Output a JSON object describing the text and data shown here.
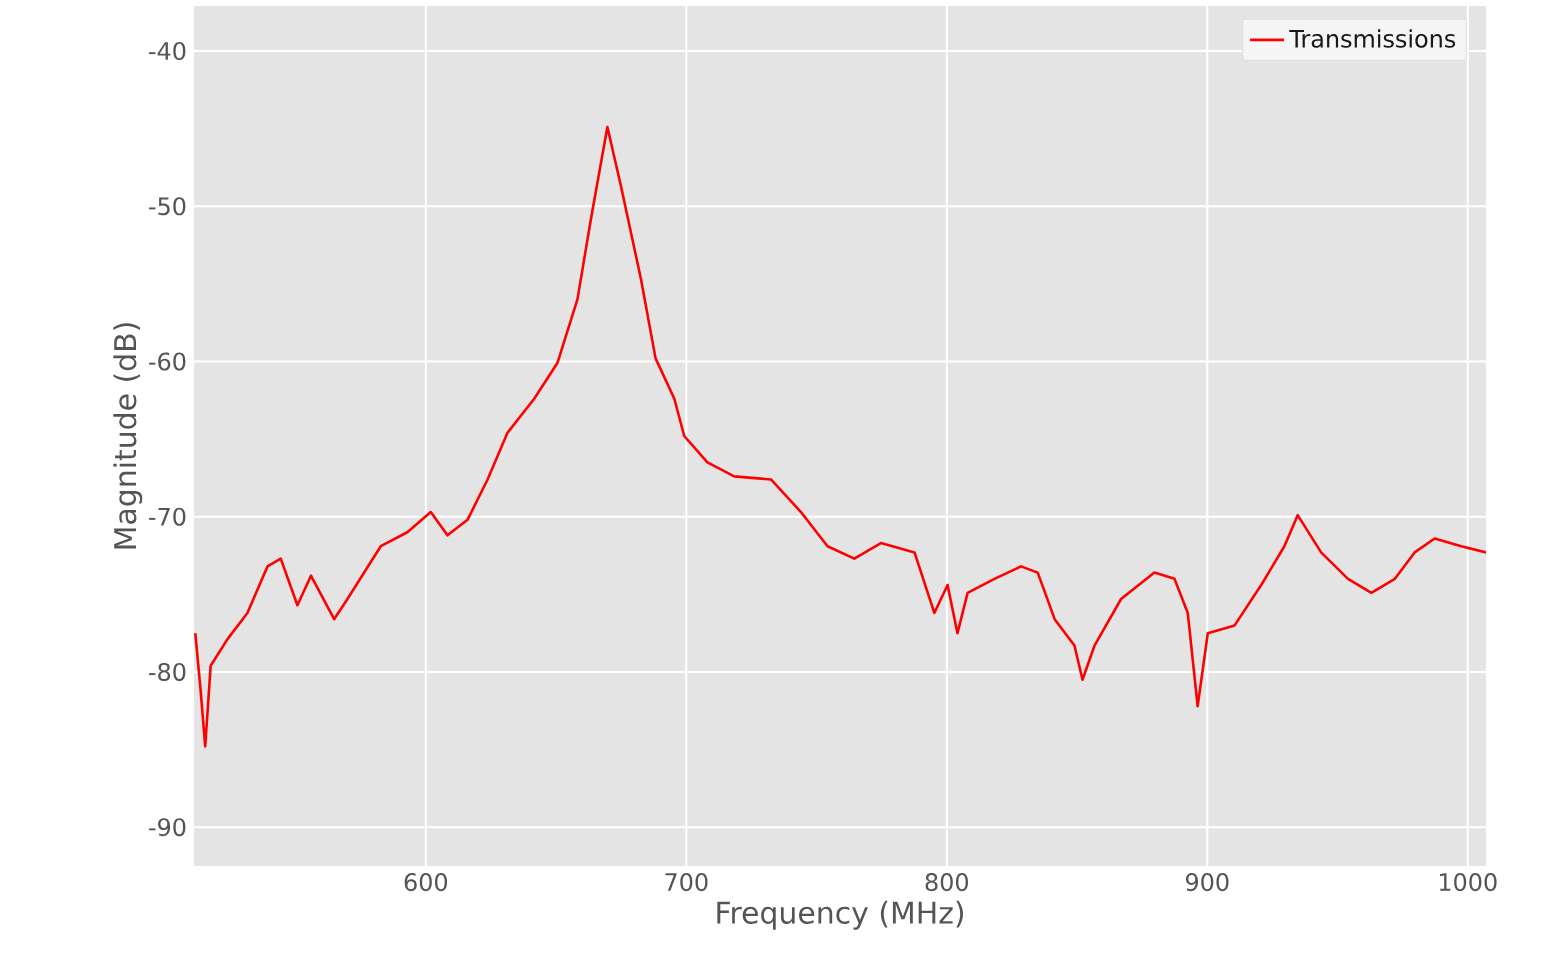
{
  "chart_data": {
    "type": "line",
    "xlabel": "Frequency (MHz)",
    "ylabel": "Magnitude (dB)",
    "xlim": [
      511,
      1007
    ],
    "ylim": [
      -92.5,
      -37.1
    ],
    "xticks": [
      600,
      700,
      800,
      900,
      1000
    ],
    "yticks": [
      -90,
      -80,
      -70,
      -60,
      -50,
      -40
    ],
    "grid": true,
    "legend": "top right",
    "series": [
      {
        "name": "Transmissions",
        "color": "#ff0000",
        "x": [
          511.5,
          513.6,
          515.3,
          517.4,
          523.8,
          531.5,
          539.2,
          544.3,
          550.7,
          555.9,
          564.8,
          569.9,
          582.7,
          592.9,
          601.9,
          608.3,
          616.0,
          623.7,
          631.3,
          641.6,
          650.5,
          658.2,
          663.4,
          669.7,
          674.9,
          682.6,
          688.2,
          695.4,
          699.2,
          708.1,
          718.4,
          732.5,
          744.0,
          754.2,
          764.5,
          774.7,
          787.6,
          795.2,
          800.3,
          804.1,
          808.0,
          818.3,
          828.5,
          834.9,
          841.4,
          849.0,
          852.1,
          856.7,
          866.9,
          879.7,
          887.4,
          892.5,
          896.3,
          900.2,
          910.5,
          920.7,
          929.6,
          934.7,
          943.7,
          954.0,
          963.0,
          972.0,
          979.6,
          987.3,
          997.5,
          1007
        ],
        "values": [
          -77.5,
          -81.3,
          -84.8,
          -79.6,
          -77.9,
          -76.2,
          -73.2,
          -72.7,
          -75.7,
          -73.8,
          -76.6,
          -75.3,
          -71.9,
          -71.0,
          -69.7,
          -71.2,
          -70.2,
          -67.6,
          -64.6,
          -62.4,
          -60.1,
          -56.0,
          -50.8,
          -44.9,
          -48.7,
          -54.7,
          -59.8,
          -62.4,
          -64.8,
          -66.5,
          -67.4,
          -67.6,
          -69.7,
          -71.9,
          -72.7,
          -71.7,
          -72.3,
          -76.2,
          -74.4,
          -77.5,
          -74.9,
          -74.0,
          -73.2,
          -73.6,
          -76.6,
          -78.3,
          -80.5,
          -78.3,
          -75.3,
          -73.6,
          -74.0,
          -76.2,
          -82.2,
          -77.5,
          -77.0,
          -74.4,
          -71.9,
          -69.9,
          -72.3,
          -74.0,
          -74.9,
          -74.0,
          -72.3,
          -71.4,
          -71.9,
          -72.3
        ]
      }
    ]
  }
}
